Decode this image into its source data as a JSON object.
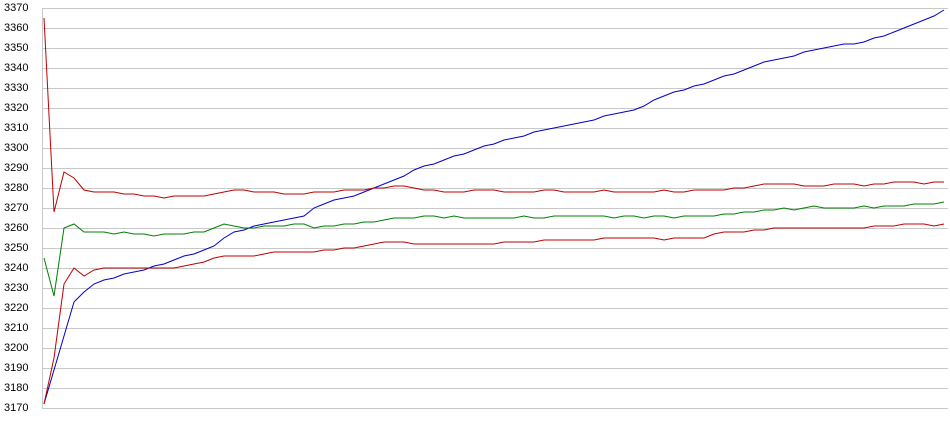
{
  "chart_data": {
    "type": "line",
    "ylim": [
      3170,
      3370
    ],
    "yticks": [
      3170,
      3180,
      3190,
      3200,
      3210,
      3220,
      3230,
      3240,
      3250,
      3260,
      3270,
      3280,
      3290,
      3300,
      3310,
      3320,
      3330,
      3340,
      3350,
      3360,
      3370
    ],
    "grid": true,
    "series": [
      {
        "color": "#0000cc",
        "values": [
          3172,
          3189,
          3206,
          3223,
          3228,
          3232,
          3234,
          3235,
          3237,
          3238,
          3239,
          3241,
          3242,
          3244,
          3246,
          3247,
          3249,
          3251,
          3255,
          3258,
          3259,
          3261,
          3262,
          3263,
          3264,
          3265,
          3266,
          3270,
          3272,
          3274,
          3275,
          3276,
          3278,
          3280,
          3282,
          3284,
          3286,
          3289,
          3291,
          3292,
          3294,
          3296,
          3297,
          3299,
          3301,
          3302,
          3304,
          3305,
          3306,
          3308,
          3309,
          3310,
          3311,
          3312,
          3313,
          3314,
          3316,
          3317,
          3318,
          3319,
          3321,
          3324,
          3326,
          3328,
          3329,
          3331,
          3332,
          3334,
          3336,
          3337,
          3339,
          3341,
          3343,
          3344,
          3345,
          3346,
          3348,
          3349,
          3350,
          3351,
          3352,
          3352,
          3353,
          3355,
          3356,
          3358,
          3360,
          3362,
          3364,
          3366,
          3369
        ]
      },
      {
        "color": "#008000",
        "values": [
          3245,
          3226,
          3260,
          3262,
          3258,
          3258,
          3258,
          3257,
          3258,
          3257,
          3257,
          3256,
          3257,
          3257,
          3257,
          3258,
          3258,
          3260,
          3262,
          3261,
          3260,
          3260,
          3261,
          3261,
          3261,
          3262,
          3262,
          3260,
          3261,
          3261,
          3262,
          3262,
          3263,
          3263,
          3264,
          3265,
          3265,
          3265,
          3266,
          3266,
          3265,
          3266,
          3265,
          3265,
          3265,
          3265,
          3265,
          3265,
          3266,
          3265,
          3265,
          3266,
          3266,
          3266,
          3266,
          3266,
          3266,
          3265,
          3266,
          3266,
          3265,
          3266,
          3266,
          3265,
          3266,
          3266,
          3266,
          3266,
          3267,
          3267,
          3268,
          3268,
          3269,
          3269,
          3270,
          3269,
          3270,
          3271,
          3270,
          3270,
          3270,
          3270,
          3271,
          3270,
          3271,
          3271,
          3271,
          3272,
          3272,
          3272,
          3273
        ]
      },
      {
        "color": "#c00000",
        "values": [
          3365,
          3268,
          3288,
          3285,
          3279,
          3278,
          3278,
          3278,
          3277,
          3277,
          3276,
          3276,
          3275,
          3276,
          3276,
          3276,
          3276,
          3277,
          3278,
          3279,
          3279,
          3278,
          3278,
          3278,
          3277,
          3277,
          3277,
          3278,
          3278,
          3278,
          3279,
          3279,
          3279,
          3280,
          3280,
          3281,
          3281,
          3280,
          3279,
          3279,
          3278,
          3278,
          3278,
          3279,
          3279,
          3279,
          3278,
          3278,
          3278,
          3278,
          3279,
          3279,
          3278,
          3278,
          3278,
          3278,
          3279,
          3278,
          3278,
          3278,
          3278,
          3278,
          3279,
          3278,
          3278,
          3279,
          3279,
          3279,
          3279,
          3280,
          3280,
          3281,
          3282,
          3282,
          3282,
          3282,
          3281,
          3281,
          3281,
          3282,
          3282,
          3282,
          3281,
          3282,
          3282,
          3283,
          3283,
          3283,
          3282,
          3283,
          3283
        ]
      },
      {
        "color": "#c00000",
        "values": [
          3172,
          3195,
          3232,
          3240,
          3236,
          3239,
          3240,
          3240,
          3240,
          3240,
          3240,
          3240,
          3240,
          3240,
          3241,
          3242,
          3243,
          3245,
          3246,
          3246,
          3246,
          3246,
          3247,
          3248,
          3248,
          3248,
          3248,
          3248,
          3249,
          3249,
          3250,
          3250,
          3251,
          3252,
          3253,
          3253,
          3253,
          3252,
          3252,
          3252,
          3252,
          3252,
          3252,
          3252,
          3252,
          3252,
          3253,
          3253,
          3253,
          3253,
          3254,
          3254,
          3254,
          3254,
          3254,
          3254,
          3255,
          3255,
          3255,
          3255,
          3255,
          3255,
          3254,
          3255,
          3255,
          3255,
          3255,
          3257,
          3258,
          3258,
          3258,
          3259,
          3259,
          3260,
          3260,
          3260,
          3260,
          3260,
          3260,
          3260,
          3260,
          3260,
          3260,
          3261,
          3261,
          3261,
          3262,
          3262,
          3262,
          3261,
          3262
        ]
      }
    ]
  }
}
